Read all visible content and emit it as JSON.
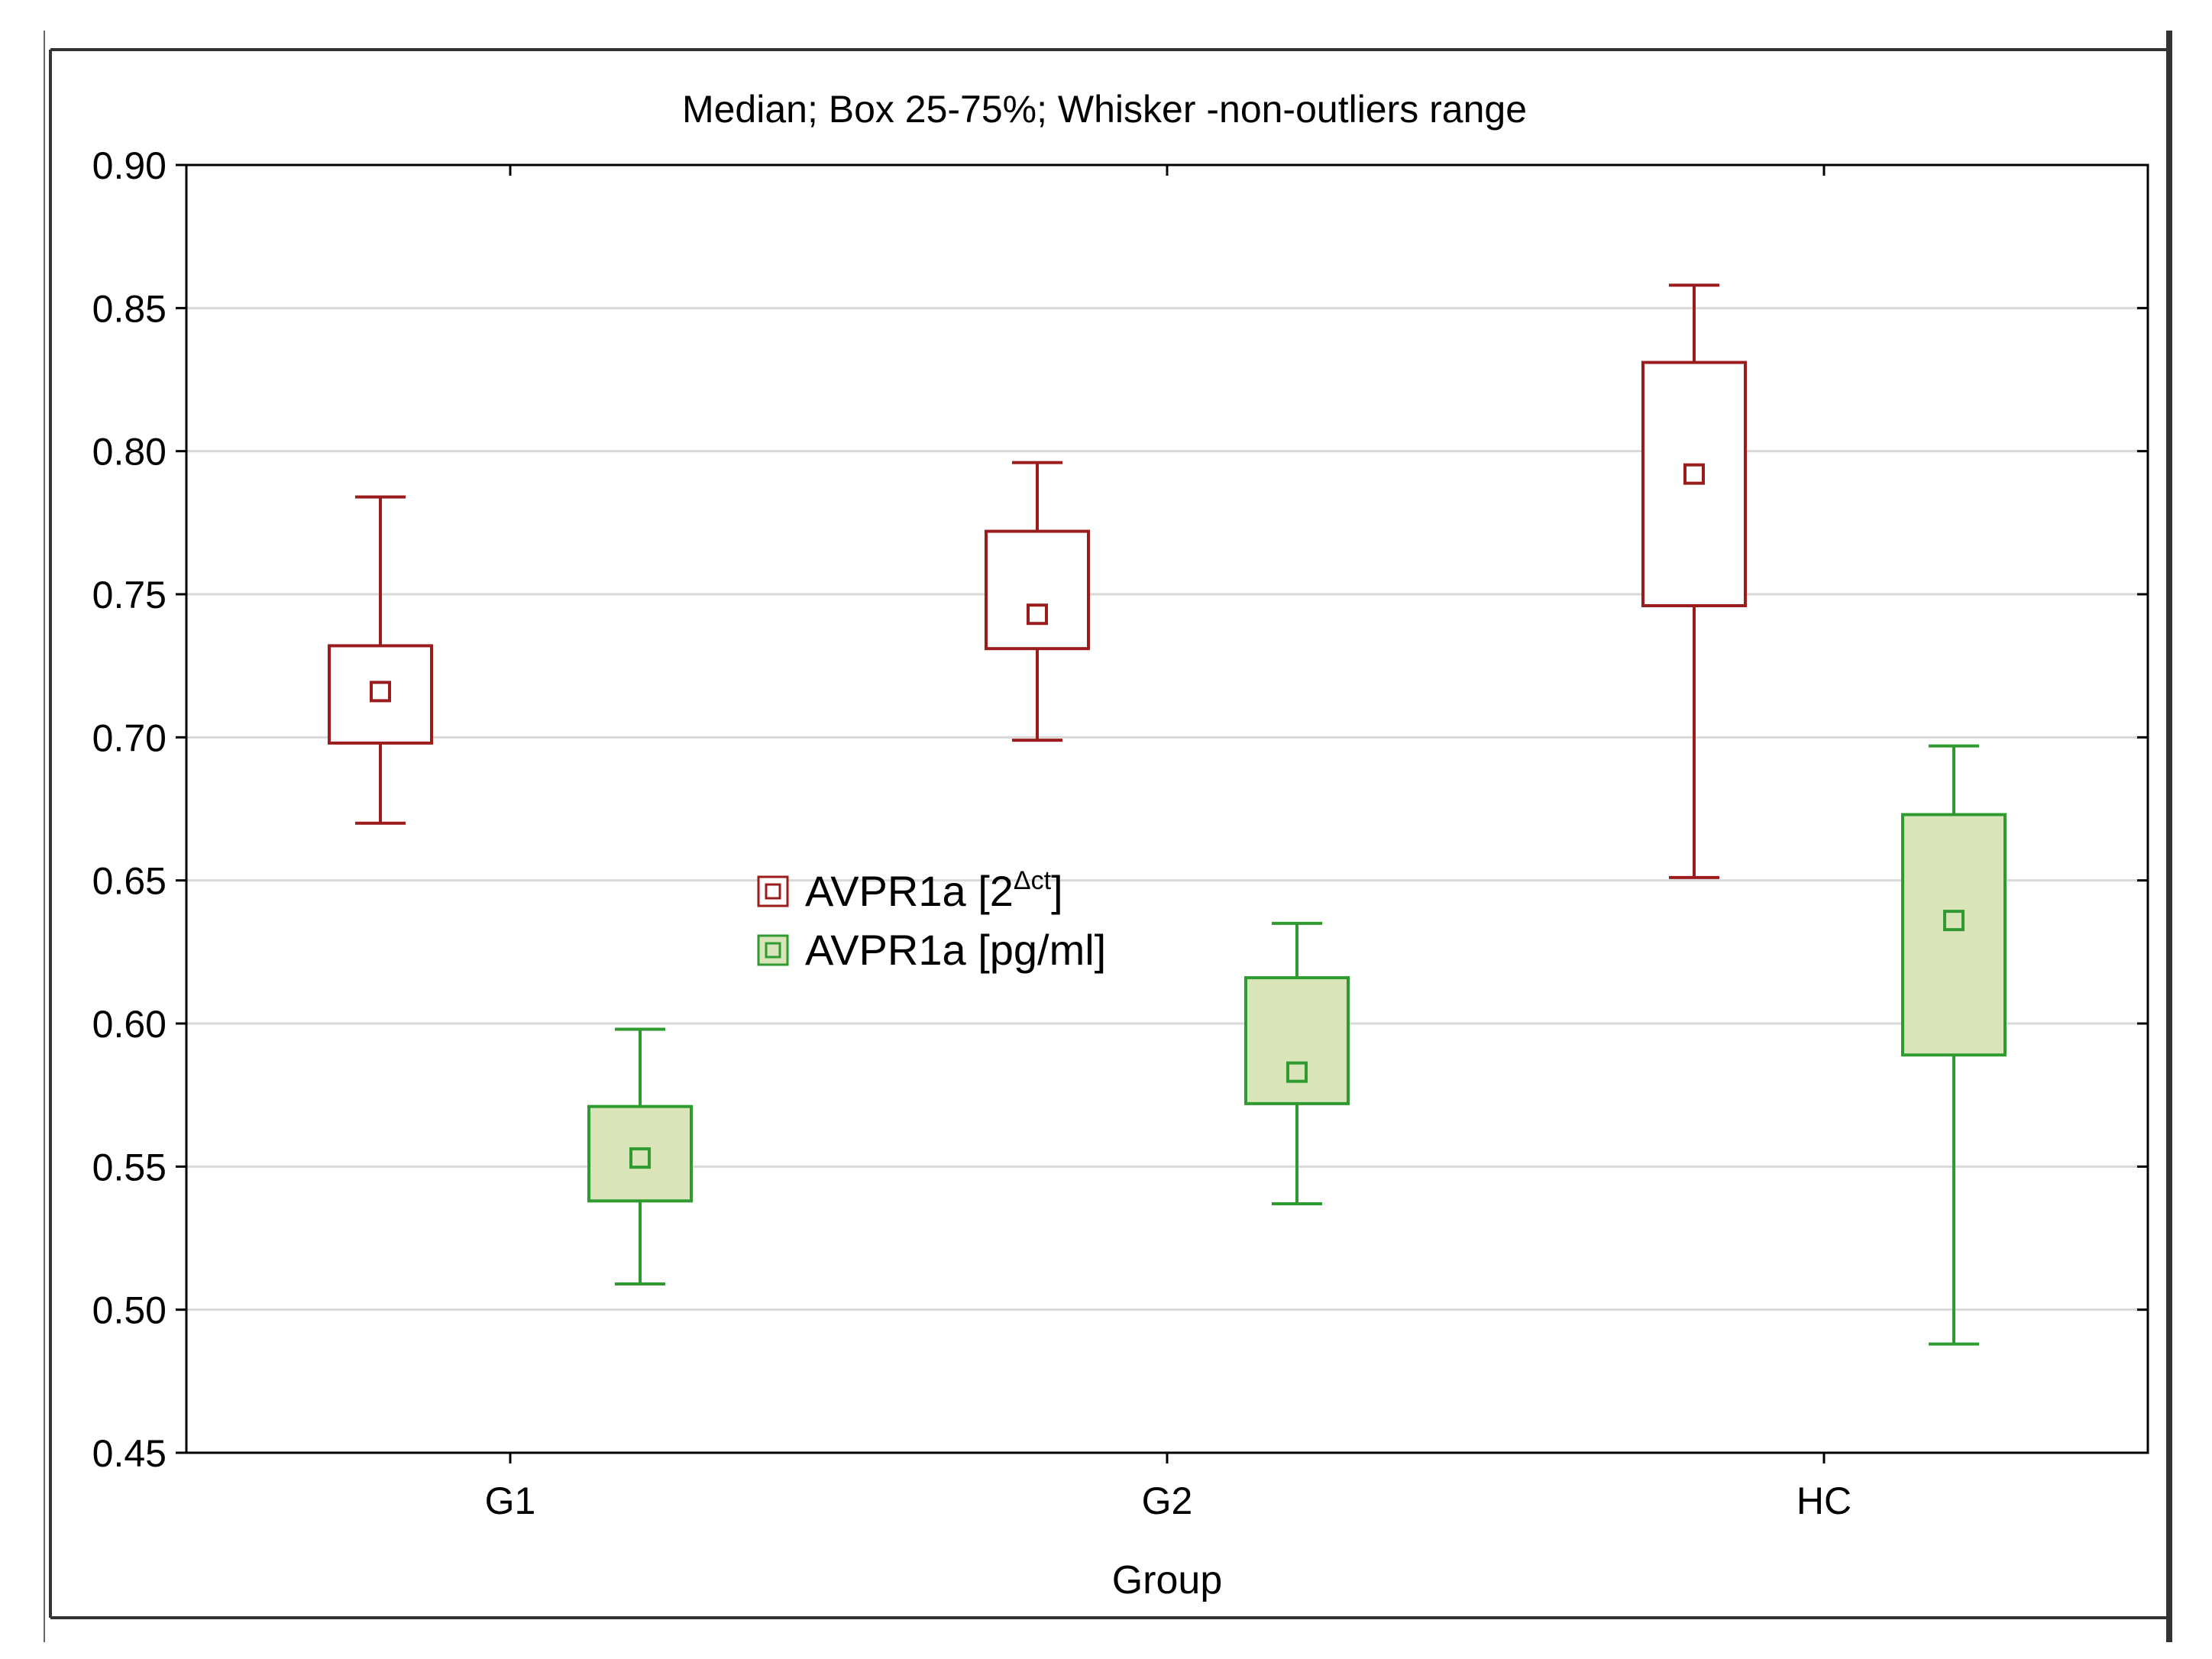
{
  "chart_data": {
    "type": "box",
    "title": "Median; Box 25-75%; Whisker -non-outliers range",
    "xlabel": "Group",
    "ylabel": "",
    "categories": [
      "G1",
      "G2",
      "HC"
    ],
    "ylim": [
      0.45,
      0.9
    ],
    "yticks": [
      0.45,
      0.5,
      0.55,
      0.6,
      0.65,
      0.7,
      0.75,
      0.8,
      0.85,
      0.9
    ],
    "ytick_labels": [
      "0.45",
      "0.50",
      "0.55",
      "0.60",
      "0.65",
      "0.70",
      "0.75",
      "0.80",
      "0.85",
      "0.90"
    ],
    "grid": true,
    "legend_position": "center",
    "series": [
      {
        "name": "AVPR1a [2",
        "name_superscript": "Δct",
        "name_suffix": "]",
        "color": "#9b1c1c",
        "fill": "#ffffff",
        "boxes": [
          {
            "category": "G1",
            "whisker_low": 0.67,
            "q1": 0.698,
            "median": 0.716,
            "q3": 0.732,
            "whisker_high": 0.784
          },
          {
            "category": "G2",
            "whisker_low": 0.699,
            "q1": 0.731,
            "median": 0.743,
            "q3": 0.772,
            "whisker_high": 0.796
          },
          {
            "category": "HC",
            "whisker_low": 0.651,
            "q1": 0.746,
            "median": 0.792,
            "q3": 0.831,
            "whisker_high": 0.858
          }
        ]
      },
      {
        "name": "AVPR1a [pg/ml]",
        "name_superscript": "",
        "name_suffix": "",
        "color": "#2f9a2f",
        "fill": "#d9e4b8",
        "boxes": [
          {
            "category": "G1",
            "whisker_low": 0.509,
            "q1": 0.538,
            "median": 0.553,
            "q3": 0.571,
            "whisker_high": 0.598
          },
          {
            "category": "G2",
            "whisker_low": 0.537,
            "q1": 0.572,
            "median": 0.583,
            "q3": 0.616,
            "whisker_high": 0.635
          },
          {
            "category": "HC",
            "whisker_low": 0.488,
            "q1": 0.589,
            "median": 0.636,
            "q3": 0.673,
            "whisker_high": 0.697
          }
        ]
      }
    ]
  },
  "colors": {
    "grid": "#d9d9d9",
    "axis": "#000000",
    "frame": "#333333"
  }
}
